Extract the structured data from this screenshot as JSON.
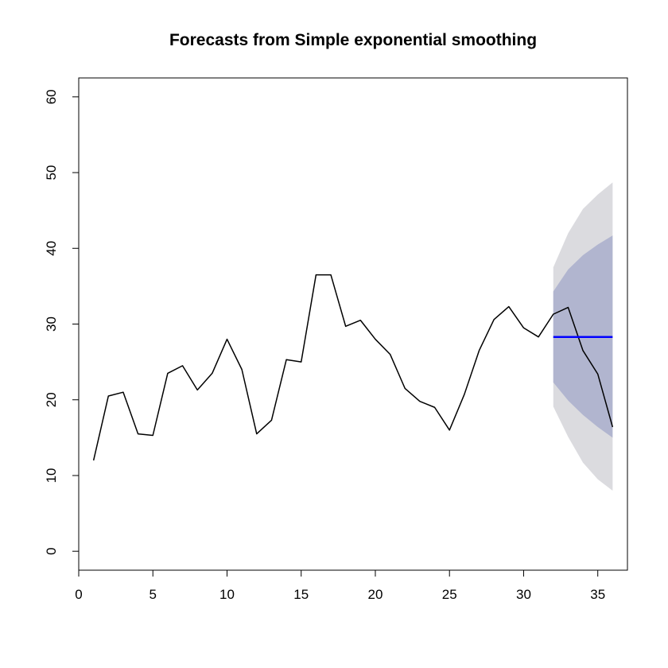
{
  "chart_data": {
    "type": "line",
    "title": "Forecasts from Simple exponential smoothing",
    "xlabel": "",
    "ylabel": "",
    "xlim": [
      0,
      37
    ],
    "ylim": [
      -2.5,
      62.5
    ],
    "x_ticks": [
      0,
      5,
      10,
      15,
      20,
      25,
      30,
      35
    ],
    "y_ticks": [
      0,
      10,
      20,
      30,
      40,
      50,
      60
    ],
    "observed": {
      "x": [
        1,
        2,
        3,
        4,
        5,
        6,
        7,
        8,
        9,
        10,
        11,
        12,
        13,
        14,
        15,
        16,
        17,
        18,
        19,
        20,
        21,
        22,
        23,
        24,
        25,
        26,
        27,
        28,
        29,
        30,
        31,
        32,
        33,
        34,
        35,
        36
      ],
      "y": [
        12.0,
        20.5,
        21.0,
        15.5,
        15.3,
        23.5,
        24.5,
        21.3,
        23.5,
        28.0,
        24.0,
        15.5,
        17.3,
        25.3,
        25.0,
        36.5,
        36.5,
        29.7,
        30.5,
        28.0,
        26.0,
        21.5,
        19.8,
        19.0,
        16.0,
        20.7,
        26.5,
        30.6,
        32.3,
        29.5,
        28.3,
        31.3,
        32.2,
        26.5,
        23.4,
        16.4
      ]
    },
    "forecast": {
      "x": [
        32,
        33,
        34,
        35,
        36
      ],
      "mean": [
        28.3,
        28.3,
        28.3,
        28.3,
        28.3
      ],
      "lo80": [
        22.3,
        19.9,
        18.0,
        16.4,
        15.0
      ],
      "hi80": [
        34.3,
        37.2,
        39.1,
        40.5,
        41.7
      ],
      "lo95": [
        19.1,
        15.1,
        11.7,
        9.5,
        8.0
      ],
      "hi95": [
        37.5,
        42.0,
        45.2,
        47.1,
        48.7
      ]
    },
    "colors": {
      "observed": "#000000",
      "forecast_mean": "#0000ff",
      "band_80": "#b1b5cf",
      "band_95": "#dbdbdf"
    },
    "grid": false,
    "legend": "none"
  }
}
